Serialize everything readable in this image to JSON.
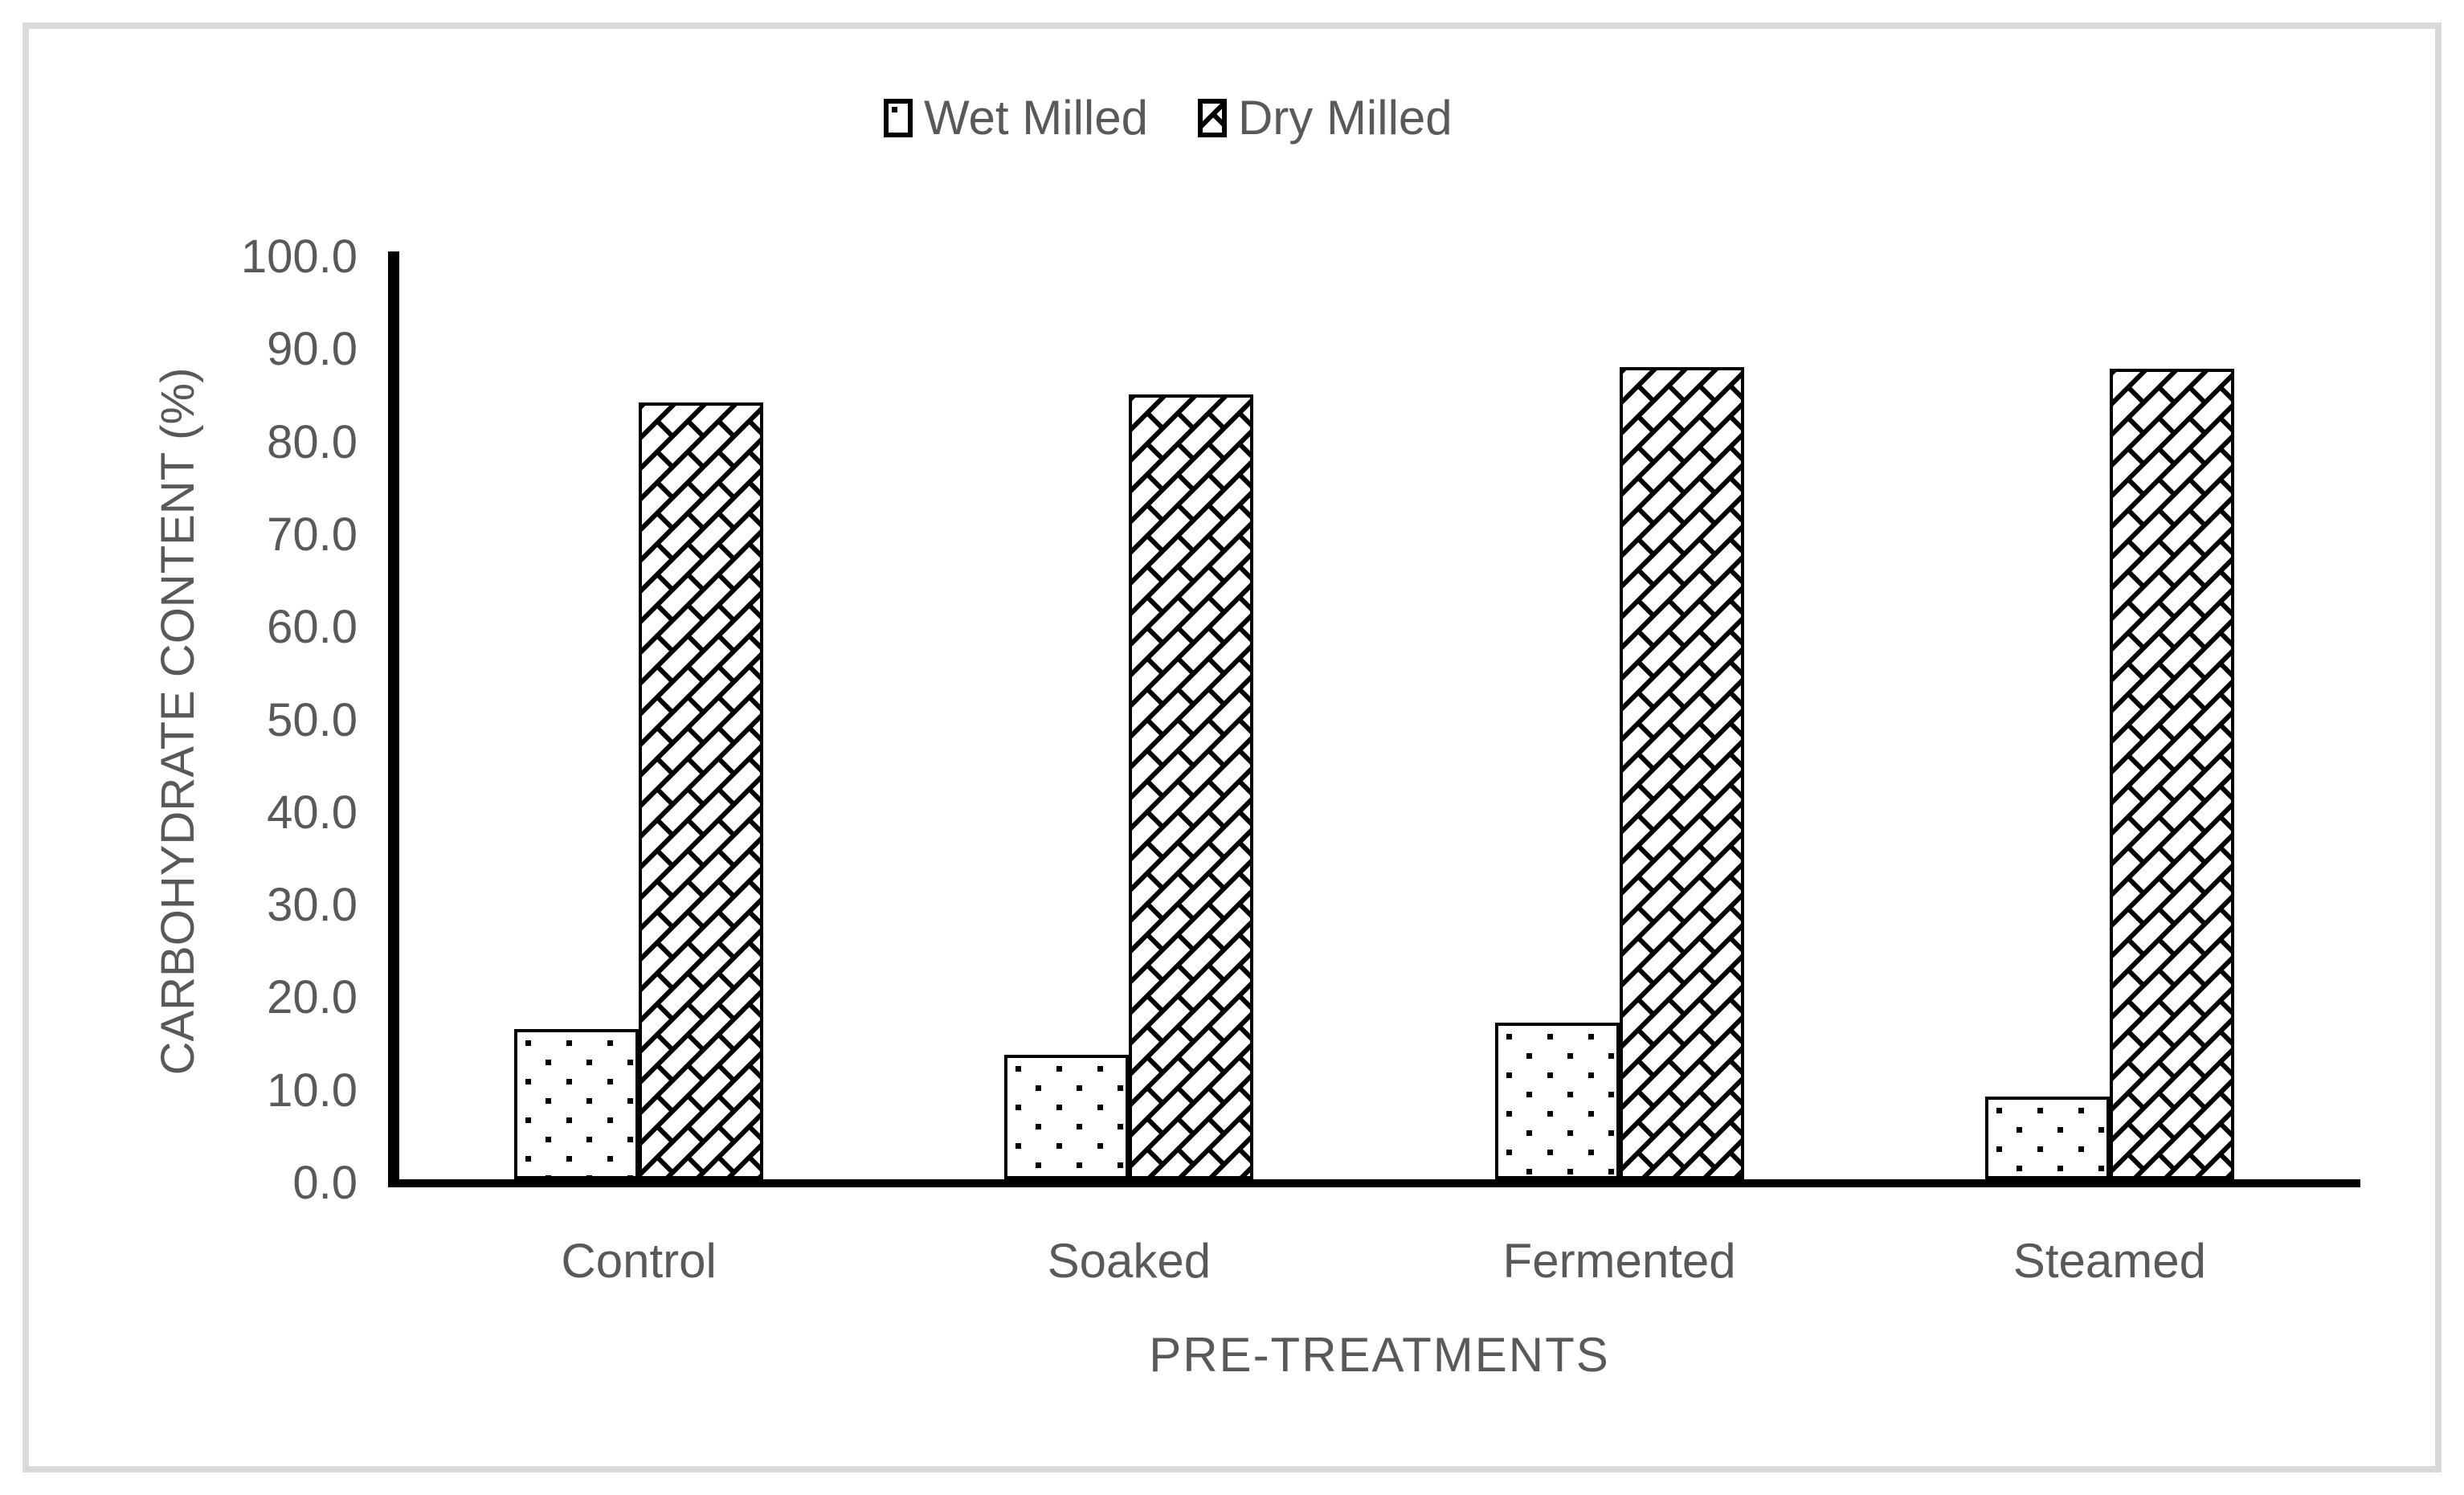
{
  "legend": {
    "items": [
      {
        "label": "Wet Milled",
        "swatch": "dotted"
      },
      {
        "label": "Dry Milled",
        "swatch": "diagonal-brick"
      }
    ]
  },
  "chart_data": {
    "type": "bar",
    "title": "",
    "categories": [
      "Control",
      "Soaked",
      "Fermented",
      "Steamed"
    ],
    "series": [
      {
        "name": "Wet Milled",
        "pattern": "dotted",
        "values": [
          16.2,
          13.4,
          16.9,
          8.9
        ]
      },
      {
        "name": "Dry Milled",
        "pattern": "diagonal-brick",
        "values": [
          83.9,
          84.7,
          87.7,
          87.5
        ]
      }
    ],
    "xlabel": "PRE-TREATMENTS",
    "ylabel": "CARBOHYDRATE CONTENT (%)",
    "ylim": [
      0,
      100
    ],
    "ytick_step": 10,
    "yticks": [
      "0.0",
      "10.0",
      "20.0",
      "30.0",
      "40.0",
      "50.0",
      "60.0",
      "70.0",
      "80.0",
      "90.0",
      "100.0"
    ],
    "grid": false,
    "legend_position": "top-center"
  },
  "colors": {
    "text": "#595959",
    "axis": "#000000",
    "frame_border": "#d9d9d9",
    "bar_fill": "#ffffff",
    "pattern_ink": "#000000"
  }
}
